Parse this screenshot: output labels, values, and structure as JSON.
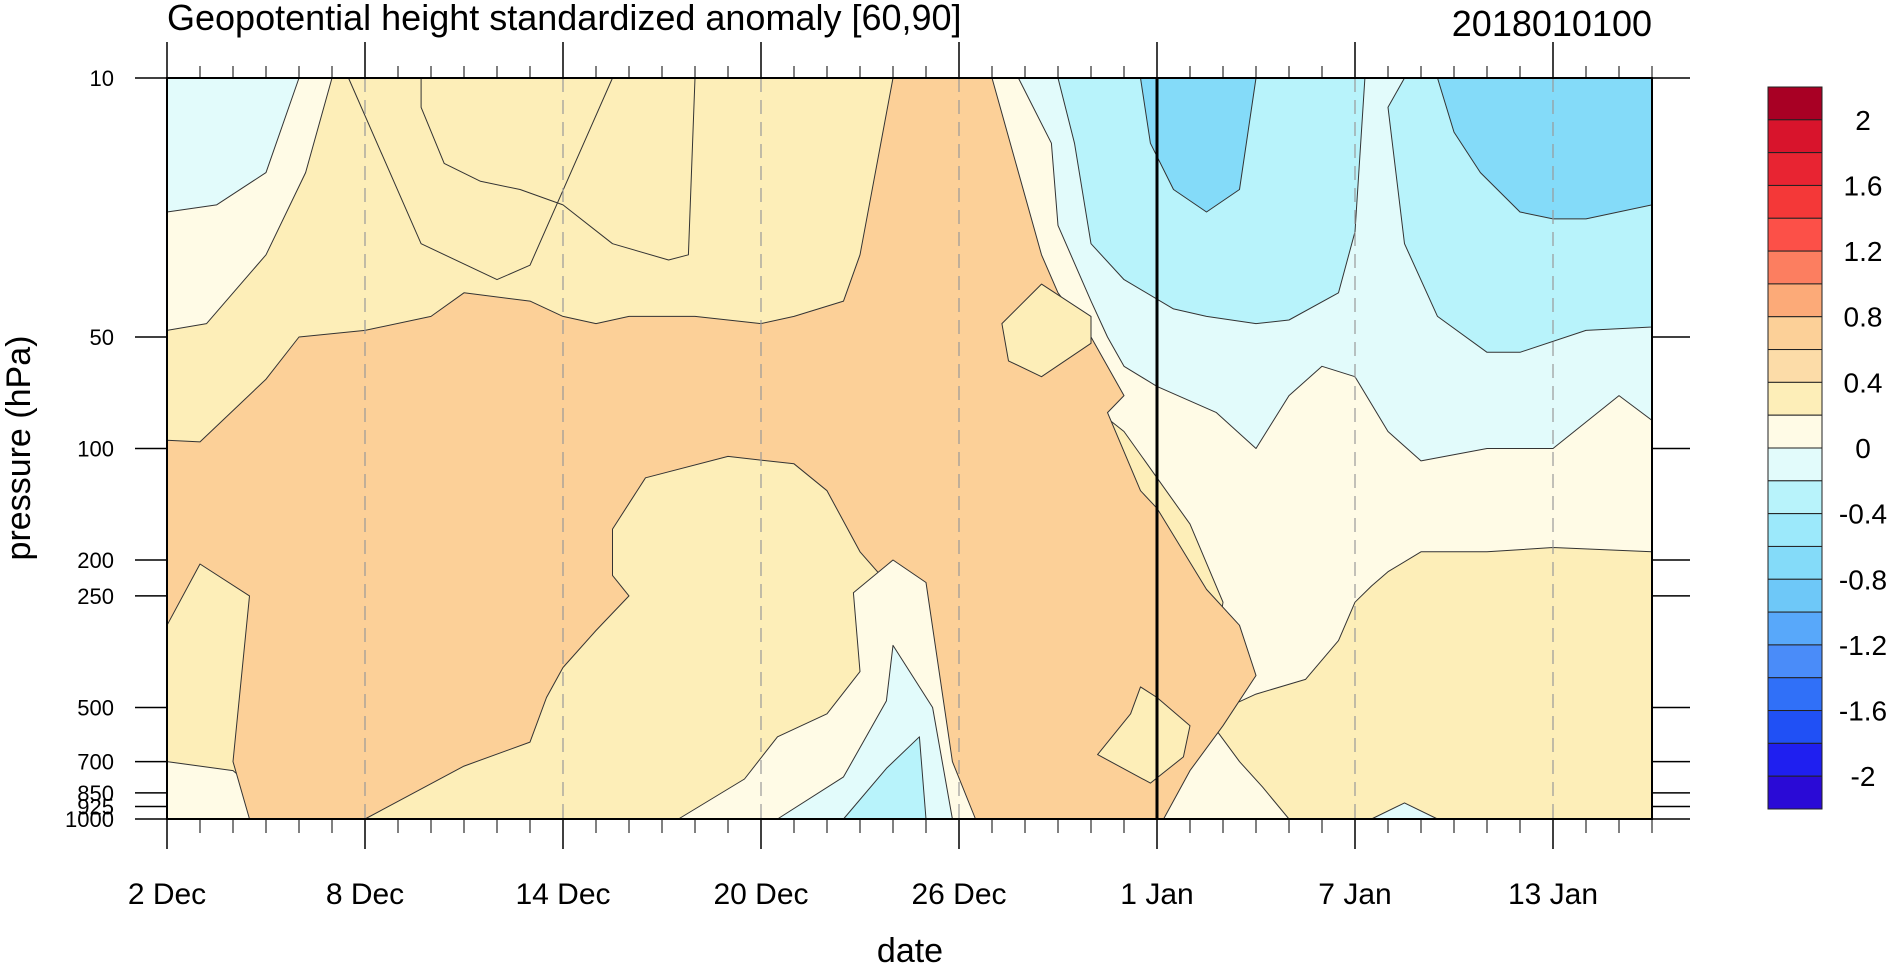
{
  "header": {
    "title": "Geopotential height standardized anomaly [60,90]",
    "date_stamp": "2018010100"
  },
  "chart_data": {
    "type": "heatmap",
    "title": "Geopotential height standardized anomaly [60,90]",
    "xlabel": "date",
    "ylabel": "pressure (hPa)",
    "yscale": "log",
    "yinvert": true,
    "ylim": [
      1000,
      10
    ],
    "x_range_days_from_2_Dec": [
      0,
      45
    ],
    "x_tick_labels": [
      "2 Dec",
      "8 Dec",
      "14 Dec",
      "20 Dec",
      "26 Dec",
      "1 Jan",
      "7 Jan",
      "13 Jan"
    ],
    "x_tick_dates": [
      "2017-12-02",
      "2017-12-08",
      "2017-12-14",
      "2017-12-20",
      "2017-12-26",
      "2018-01-01",
      "2018-01-07",
      "2018-01-13"
    ],
    "y_tick_values": [
      10,
      50,
      100,
      200,
      250,
      500,
      700,
      850,
      925,
      1000
    ],
    "y_tick_labels": [
      "10",
      "50",
      "100",
      "200",
      "250",
      "500",
      "700",
      "850",
      "925",
      "1000"
    ],
    "reference_line_date": "2018-01-01",
    "colorbar": {
      "levels": [
        -2.2,
        -2.0,
        -1.8,
        -1.6,
        -1.4,
        -1.2,
        -1.0,
        -0.8,
        -0.6,
        -0.4,
        -0.2,
        0,
        0.2,
        0.4,
        0.6,
        0.8,
        1.0,
        1.2,
        1.4,
        1.6,
        1.8,
        2.0,
        2.2
      ],
      "colors": [
        "#2a0ad6",
        "#1f1ff0",
        "#2050f5",
        "#3070f8",
        "#4a8cf9",
        "#58a8fa",
        "#6ec8f8",
        "#84dbf9",
        "#9ce9fb",
        "#b8f3fb",
        "#e2fbfb",
        "#fffbe6",
        "#fdeeb8",
        "#fcdca8",
        "#fcd098",
        "#fcaa78",
        "#fc7e60",
        "#fc5048",
        "#f43838",
        "#e82432",
        "#d8142c",
        "#a80024"
      ],
      "tick_labels": [
        "2",
        "1.6",
        "1.2",
        "0.8",
        "0.4",
        "0",
        "-0.4",
        "-0.8",
        "-1.2",
        "-1.6",
        "-2"
      ],
      "tick_values": [
        2.0,
        1.6,
        1.2,
        0.8,
        0.4,
        0,
        -0.4,
        -0.8,
        -1.2,
        -1.6,
        -2.0
      ]
    },
    "regions": [
      {
        "value": 0.1,
        "color": "#fffbe6",
        "points": [
          [
            0,
            10
          ],
          [
            45,
            10
          ],
          [
            45,
            1000
          ],
          [
            0,
            1000
          ]
        ]
      },
      {
        "value": 0.3,
        "color": "#fdeeb8",
        "points": [
          [
            0,
            48
          ],
          [
            1.2,
            46
          ],
          [
            3,
            30
          ],
          [
            4.2,
            18
          ],
          [
            5,
            10
          ],
          [
            22,
            10
          ],
          [
            22,
            60
          ],
          [
            24,
            40
          ],
          [
            25,
            50
          ],
          [
            27,
            65
          ],
          [
            29,
            90
          ],
          [
            30,
            120
          ],
          [
            31,
            160
          ],
          [
            32,
            260
          ],
          [
            31.5,
            500
          ],
          [
            30,
            740
          ],
          [
            30.2,
            1000
          ],
          [
            20,
            1000
          ],
          [
            18,
            1000
          ],
          [
            12.5,
            1000
          ],
          [
            9.5,
            1000
          ],
          [
            4,
            1000
          ],
          [
            3,
            880
          ],
          [
            2,
            740
          ],
          [
            0,
            700
          ]
        ]
      },
      {
        "value": 0.3,
        "color": "#fdeeb8",
        "points": [
          [
            5,
            10
          ],
          [
            5.5,
            10
          ],
          [
            7.7,
            28
          ],
          [
            10,
            35
          ],
          [
            11,
            32
          ],
          [
            13.5,
            10
          ],
          [
            16,
            10
          ],
          [
            15.8,
            30
          ],
          [
            15.2,
            31
          ],
          [
            13.5,
            28
          ],
          [
            12,
            22
          ],
          [
            10.7,
            20
          ],
          [
            9.5,
            19
          ],
          [
            8.4,
            17
          ],
          [
            7.7,
            12
          ],
          [
            7.7,
            10
          ]
        ]
      },
      {
        "value": 0.3,
        "color": "#fdeeb8",
        "points": [
          [
            34,
            1000
          ],
          [
            33.2,
            820
          ],
          [
            32.5,
            700
          ],
          [
            31.5,
            530
          ],
          [
            33,
            460
          ],
          [
            34.5,
            420
          ],
          [
            35.5,
            330
          ],
          [
            36,
            260
          ],
          [
            36.5,
            235
          ],
          [
            37,
            215
          ],
          [
            38,
            190
          ],
          [
            40,
            190
          ],
          [
            42,
            185
          ],
          [
            45,
            190
          ],
          [
            45,
            1000
          ]
        ]
      },
      {
        "value": 0.5,
        "color": "#fcd098",
        "points": [
          [
            0,
            95
          ],
          [
            1,
            96
          ],
          [
            3,
            65
          ],
          [
            4,
            50
          ],
          [
            6,
            48
          ],
          [
            8,
            44
          ],
          [
            9,
            38
          ],
          [
            11,
            40
          ],
          [
            12,
            44
          ],
          [
            13,
            46
          ],
          [
            14,
            44
          ],
          [
            15,
            44
          ],
          [
            16,
            44
          ],
          [
            18,
            46
          ],
          [
            19,
            44
          ],
          [
            20.5,
            40
          ],
          [
            21,
            30
          ],
          [
            22,
            10
          ],
          [
            25,
            10
          ],
          [
            26.5,
            30
          ],
          [
            27,
            38
          ],
          [
            28,
            50
          ],
          [
            29,
            72
          ],
          [
            28.5,
            80
          ],
          [
            29.5,
            130
          ],
          [
            30,
            145
          ],
          [
            31.5,
            240
          ],
          [
            32.5,
            300
          ],
          [
            33,
            410
          ],
          [
            32,
            560
          ],
          [
            31,
            740
          ],
          [
            30.2,
            1000
          ],
          [
            24,
            1000
          ],
          [
            22,
            790
          ],
          [
            21.5,
            590
          ],
          [
            22.5,
            270
          ],
          [
            21,
            190
          ],
          [
            20,
            130
          ],
          [
            19,
            110
          ],
          [
            17,
            105
          ],
          [
            14.5,
            120
          ],
          [
            13.5,
            165
          ],
          [
            13.5,
            220
          ],
          [
            14,
            250
          ],
          [
            13,
            310
          ],
          [
            12,
            390
          ],
          [
            11.5,
            470
          ],
          [
            11,
            620
          ],
          [
            9,
            720
          ],
          [
            6,
            1000
          ],
          [
            2.5,
            1000
          ],
          [
            2,
            700
          ],
          [
            2.5,
            250
          ],
          [
            1,
            205
          ],
          [
            0,
            300
          ]
        ]
      },
      {
        "value": 0.3,
        "color": "#fdeeb8",
        "points": [
          [
            28.2,
            670
          ],
          [
            29.8,
            800
          ],
          [
            30.8,
            680
          ],
          [
            31,
            560
          ],
          [
            30,
            470
          ],
          [
            29.5,
            440
          ],
          [
            29.2,
            520
          ]
        ]
      },
      {
        "value": 0.3,
        "color": "#fdeeb8",
        "points": [
          [
            25.5,
            58
          ],
          [
            26.5,
            64
          ],
          [
            28,
            52
          ],
          [
            28,
            44
          ],
          [
            26.5,
            36
          ],
          [
            25.3,
            46
          ]
        ]
      },
      {
        "value": 0.1,
        "color": "#fffbe6",
        "points": [
          [
            15.5,
            1000
          ],
          [
            17.5,
            780
          ],
          [
            18.5,
            600
          ],
          [
            20,
            520
          ],
          [
            21,
            400
          ],
          [
            20.8,
            245
          ],
          [
            22,
            200
          ],
          [
            23,
            230
          ],
          [
            23.8,
            700
          ],
          [
            24.5,
            1000
          ]
        ]
      },
      {
        "value": -0.1,
        "color": "#e2fbfb",
        "points": [
          [
            18.5,
            1000
          ],
          [
            20.5,
            770
          ],
          [
            21.8,
            480
          ],
          [
            22,
            340
          ],
          [
            23.2,
            500
          ],
          [
            23.8,
            1000
          ]
        ]
      },
      {
        "value": -0.3,
        "color": "#b8f3fb",
        "points": [
          [
            20.5,
            1000
          ],
          [
            21.8,
            730
          ],
          [
            22.8,
            600
          ],
          [
            23,
            1000
          ]
        ]
      },
      {
        "value": -0.1,
        "color": "#e2fbfb",
        "points": [
          [
            0,
            10
          ],
          [
            4,
            10
          ],
          [
            3,
            18
          ],
          [
            1.5,
            22
          ],
          [
            0,
            23
          ]
        ]
      },
      {
        "value": -0.1,
        "color": "#e2fbfb",
        "points": [
          [
            25.8,
            10
          ],
          [
            45,
            10
          ],
          [
            45,
            84
          ],
          [
            44,
            72
          ],
          [
            42,
            100
          ],
          [
            40,
            100
          ],
          [
            38,
            108
          ],
          [
            37,
            90
          ],
          [
            36,
            64
          ],
          [
            35,
            60
          ],
          [
            34,
            72
          ],
          [
            33,
            100
          ],
          [
            31.8,
            80
          ],
          [
            30,
            68
          ],
          [
            29,
            60
          ],
          [
            28.5,
            50
          ],
          [
            28,
            40
          ],
          [
            27,
            25
          ],
          [
            26.8,
            15
          ]
        ]
      },
      {
        "value": -0.1,
        "color": "#e2fbfb",
        "points": [
          [
            36.5,
            1000
          ],
          [
            37.5,
            905
          ],
          [
            38.5,
            1000
          ]
        ]
      },
      {
        "value": -0.3,
        "color": "#b8f3fb",
        "points": [
          [
            27,
            10
          ],
          [
            36.3,
            10
          ],
          [
            36,
            26
          ],
          [
            35.5,
            38
          ],
          [
            34,
            45
          ],
          [
            33,
            46
          ],
          [
            31.5,
            44
          ],
          [
            30.5,
            42
          ],
          [
            29,
            35
          ],
          [
            28,
            28
          ],
          [
            27.5,
            15
          ]
        ]
      },
      {
        "value": -0.3,
        "color": "#b8f3fb",
        "points": [
          [
            37.5,
            10
          ],
          [
            45,
            10
          ],
          [
            45,
            47
          ],
          [
            43,
            48
          ],
          [
            41,
            55
          ],
          [
            40,
            55
          ],
          [
            38.5,
            44
          ],
          [
            37.5,
            28
          ],
          [
            37,
            12
          ]
        ]
      },
      {
        "value": -0.5,
        "color": "#84dbf9",
        "points": [
          [
            29.5,
            10
          ],
          [
            33,
            10
          ],
          [
            32.5,
            20
          ],
          [
            31.5,
            23
          ],
          [
            30.5,
            20
          ],
          [
            29.8,
            15
          ]
        ]
      },
      {
        "value": -0.5,
        "color": "#84dbf9",
        "points": [
          [
            38.5,
            10
          ],
          [
            45,
            10
          ],
          [
            45,
            22
          ],
          [
            43,
            24
          ],
          [
            42,
            24
          ],
          [
            41,
            23
          ],
          [
            39.8,
            18
          ],
          [
            39,
            14
          ]
        ]
      }
    ]
  }
}
